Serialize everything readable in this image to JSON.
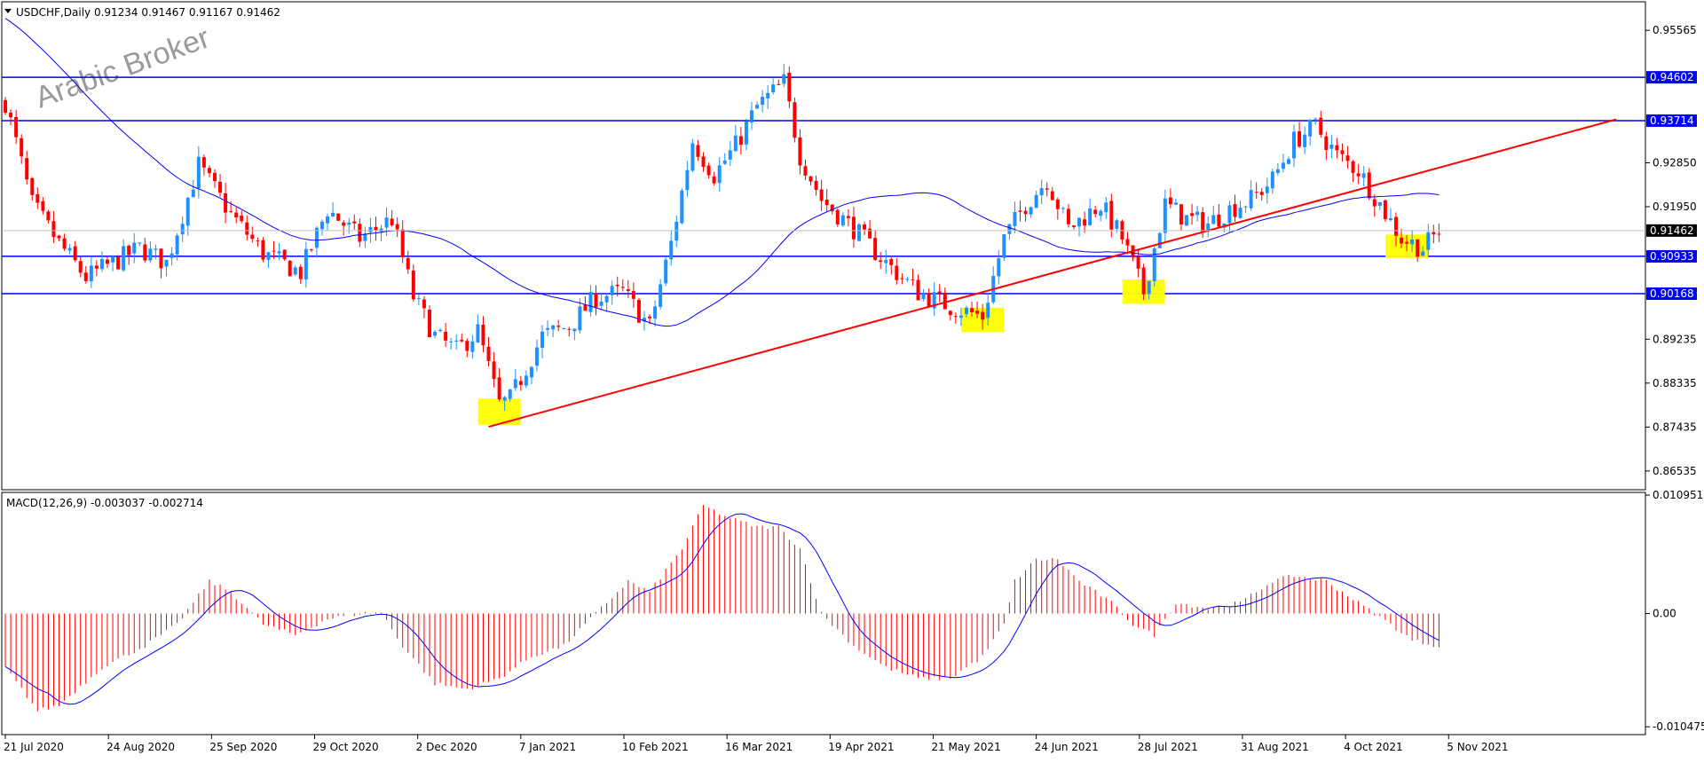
{
  "chart_data": [
    {
      "type": "candlestick",
      "symbol": "USDCHF",
      "timeframe": "Daily",
      "ohlc_readout": [
        "0.91234",
        "0.91467",
        "0.91167",
        "0.91462"
      ],
      "watermark": "Arabic Broker",
      "ylim": [
        0.8615,
        0.9615
      ],
      "price_ticks": [
        "0.95565",
        "0.92850",
        "0.91950",
        "0.89235",
        "0.88335",
        "0.87435",
        "0.86535"
      ],
      "x_tick_labels": [
        "21 Jul 2020",
        "24 Aug 2020",
        "25 Sep 2020",
        "29 Oct 2020",
        "2 Dec 2020",
        "7 Jan 2021",
        "10 Feb 2021",
        "16 Mar 2021",
        "19 Apr 2021",
        "21 May 2021",
        "24 Jun 2021",
        "28 Jul 2021",
        "31 Aug 2021",
        "4 Oct 2021",
        "5 Nov 2021"
      ],
      "horizontal_levels": [
        {
          "value": 0.94602,
          "label": "0.94602"
        },
        {
          "value": 0.93714,
          "label": "0.93714"
        },
        {
          "value": 0.90933,
          "label": "0.90933"
        },
        {
          "value": 0.90168,
          "label": "0.90168"
        }
      ],
      "current_price": {
        "value": 0.91462,
        "label": "0.91462"
      },
      "trendline": {
        "from": {
          "bar": 90,
          "price": 0.8744
        },
        "to": {
          "bar": 300,
          "price": 0.9374
        }
      },
      "highlights": [
        {
          "bar": 92,
          "low": 0.8748,
          "high": 0.8802
        },
        {
          "bar": 182,
          "low": 0.8938,
          "high": 0.8988
        },
        {
          "bar": 212,
          "low": 0.8996,
          "high": 0.9046
        },
        {
          "bar": 261,
          "low": 0.909,
          "high": 0.9138
        }
      ],
      "bars_shown": 268,
      "price_path": [
        [
          0,
          0.941
        ],
        [
          5,
          0.92
        ],
        [
          10,
          0.912
        ],
        [
          15,
          0.905
        ],
        [
          25,
          0.911
        ],
        [
          30,
          0.908
        ],
        [
          36,
          0.928
        ],
        [
          42,
          0.918
        ],
        [
          48,
          0.91
        ],
        [
          55,
          0.906
        ],
        [
          60,
          0.919
        ],
        [
          66,
          0.913
        ],
        [
          72,
          0.917
        ],
        [
          76,
          0.901
        ],
        [
          80,
          0.893
        ],
        [
          84,
          0.89
        ],
        [
          88,
          0.894
        ],
        [
          92,
          0.879
        ],
        [
          94,
          0.88
        ],
        [
          100,
          0.893
        ],
        [
          105,
          0.895
        ],
        [
          110,
          0.901
        ],
        [
          115,
          0.902
        ],
        [
          120,
          0.895
        ],
        [
          124,
          0.912
        ],
        [
          128,
          0.933
        ],
        [
          132,
          0.926
        ],
        [
          136,
          0.932
        ],
        [
          140,
          0.94
        ],
        [
          145,
          0.945
        ],
        [
          148,
          0.93
        ],
        [
          152,
          0.921
        ],
        [
          158,
          0.915
        ],
        [
          164,
          0.908
        ],
        [
          170,
          0.902
        ],
        [
          176,
          0.899
        ],
        [
          182,
          0.897
        ],
        [
          186,
          0.913
        ],
        [
          190,
          0.92
        ],
        [
          194,
          0.925
        ],
        [
          198,
          0.915
        ],
        [
          204,
          0.92
        ],
        [
          208,
          0.913
        ],
        [
          212,
          0.902
        ],
        [
          216,
          0.92
        ],
        [
          220,
          0.917
        ],
        [
          224,
          0.916
        ],
        [
          228,
          0.919
        ],
        [
          232,
          0.921
        ],
        [
          236,
          0.925
        ],
        [
          240,
          0.933
        ],
        [
          244,
          0.936
        ],
        [
          248,
          0.93
        ],
        [
          252,
          0.927
        ],
        [
          256,
          0.92
        ],
        [
          260,
          0.913
        ],
        [
          264,
          0.911
        ],
        [
          267,
          0.9146
        ]
      ]
    },
    {
      "type": "bar",
      "title": "MACD(12,26,9) -0.003037 -0.002714",
      "ylim": [
        -0.0112,
        0.0112
      ],
      "y_tick_labels": [
        "0.010951",
        "0.00",
        "-0.010475"
      ],
      "histogram_color": "#ff0000",
      "signal_color": "#0000ff",
      "macd_path": [
        [
          0,
          -0.005
        ],
        [
          6,
          -0.009
        ],
        [
          10,
          -0.0085
        ],
        [
          18,
          -0.005
        ],
        [
          26,
          -0.003
        ],
        [
          32,
          -0.001
        ],
        [
          38,
          0.003
        ],
        [
          42,
          0.002
        ],
        [
          48,
          -0.001
        ],
        [
          54,
          -0.002
        ],
        [
          60,
          -0.0005
        ],
        [
          66,
          0.0
        ],
        [
          70,
          0.0001
        ],
        [
          74,
          -0.003
        ],
        [
          80,
          -0.0065
        ],
        [
          86,
          -0.007
        ],
        [
          92,
          -0.006
        ],
        [
          98,
          -0.004
        ],
        [
          104,
          -0.003
        ],
        [
          110,
          0.0
        ],
        [
          116,
          0.003
        ],
        [
          120,
          0.002
        ],
        [
          126,
          0.006
        ],
        [
          130,
          0.01
        ],
        [
          134,
          0.009
        ],
        [
          140,
          0.008
        ],
        [
          144,
          0.008
        ],
        [
          148,
          0.006
        ],
        [
          152,
          0.0
        ],
        [
          158,
          -0.003
        ],
        [
          164,
          -0.005
        ],
        [
          170,
          -0.006
        ],
        [
          176,
          -0.006
        ],
        [
          182,
          -0.004
        ],
        [
          186,
          -0.001
        ],
        [
          188,
          0.003
        ],
        [
          192,
          0.005
        ],
        [
          196,
          0.005
        ],
        [
          200,
          0.003
        ],
        [
          206,
          0.001
        ],
        [
          210,
          -0.001
        ],
        [
          214,
          -0.002
        ],
        [
          218,
          0.001
        ],
        [
          224,
          0.0005
        ],
        [
          230,
          0.001
        ],
        [
          236,
          0.003
        ],
        [
          240,
          0.0035
        ],
        [
          246,
          0.003
        ],
        [
          252,
          0.001
        ],
        [
          258,
          -0.001
        ],
        [
          262,
          -0.0025
        ],
        [
          267,
          -0.003
        ]
      ]
    }
  ]
}
